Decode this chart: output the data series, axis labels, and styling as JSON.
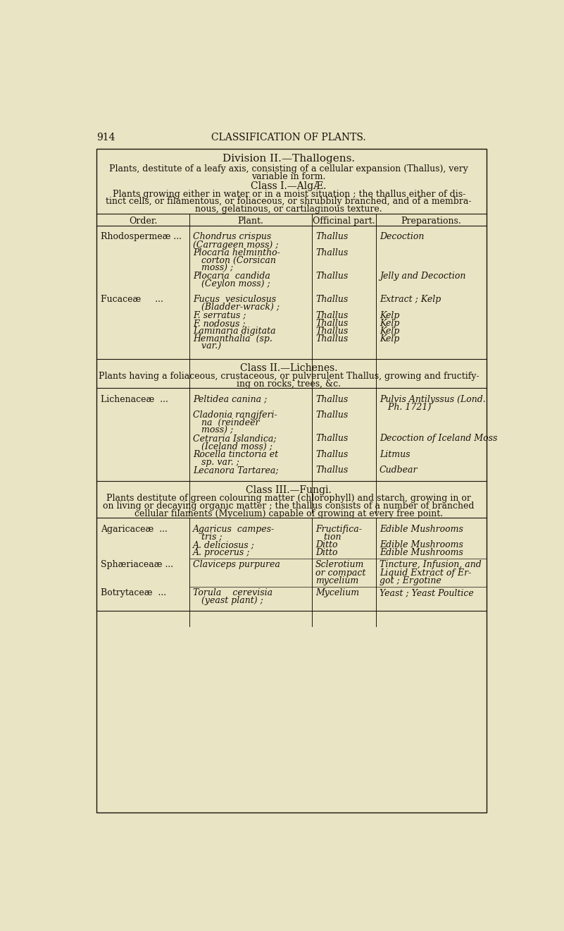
{
  "page_bg": "#e8e4c4",
  "box_bg": "#e8e4c4",
  "text_color": "#1a120a",
  "page_number": "914",
  "page_title": "CLASSIFICATION OF PLANTS.",
  "division_title": "Division II.—Thallogens.",
  "division_desc": "Plants, destitute of a leafy axis, consisting of a cellular expansion (Thallus), very\nvariable in form.",
  "class1_title": "Class I.—AlgÆ.",
  "class1_desc1": "Plants growing either in water or in a moist situation ; the thallus either of dis-",
  "class1_desc2": "tinct cells, or filamentous, or foliaceous, or shrubbily branched, and of a membra-",
  "class1_desc3": "nous, gelatinous, or cartilaginous texture.",
  "col_headers": [
    "Order.",
    "Plant.",
    "Officinal part.",
    "Preparations."
  ],
  "class2_title": "Class II.—Lichenes.",
  "class2_desc1": "Plants having a foliaceous, crustaceous, or pulverulent Thallus, growing and fructify-",
  "class2_desc2": "ing on rocks, trees, &c.",
  "class3_title": "Class III.—Fungi.",
  "class3_desc1": "Plants destitute of green colouring matter (chlorophyll) and starch, growing in or",
  "class3_desc2": "on living or decaying organic matter ; the thallus consists of a number of branched",
  "class3_desc3": "cellular filaments (Mycelium) capable of growing at every free point."
}
